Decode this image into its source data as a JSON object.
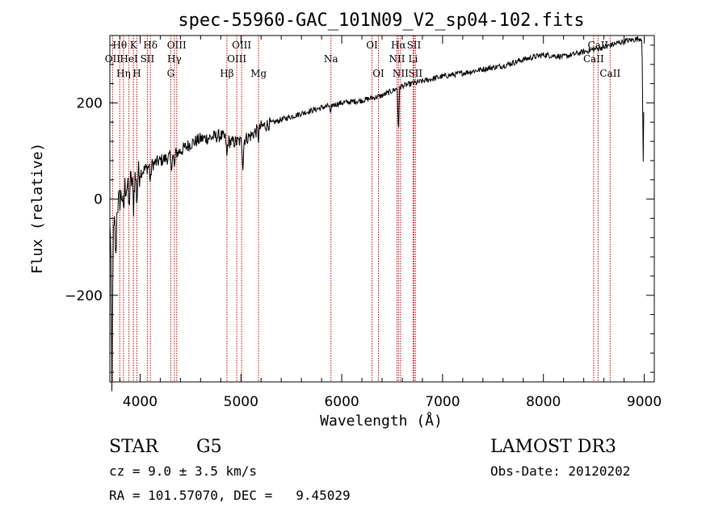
{
  "chart_data": {
    "type": "line",
    "title": "spec-55960-GAC_101N09_V2_sp04-102.fits",
    "xlabel": "Wavelength (Å)",
    "ylabel": "Flux (relative)",
    "xlim": [
      3700,
      9100
    ],
    "ylim": [
      -380,
      340
    ],
    "x_ticks": [
      4000,
      5000,
      6000,
      7000,
      8000,
      9000
    ],
    "x_tick_labels": [
      "4000",
      "5000",
      "6000",
      "7000",
      "8000",
      "9000"
    ],
    "y_ticks": [
      -200,
      0,
      200
    ],
    "y_tick_labels": [
      "−200",
      "0",
      "200"
    ],
    "continuum_points": {
      "x": [
        3700,
        3730,
        3760,
        3800,
        3850,
        3900,
        3950,
        4000,
        4100,
        4200,
        4300,
        4400,
        4500,
        4600,
        4700,
        4800,
        4900,
        5000,
        5100,
        5200,
        5400,
        5600,
        5800,
        6000,
        6200,
        6400,
        6600,
        6800,
        7000,
        7200,
        7400,
        7600,
        7800,
        8000,
        8200,
        8400,
        8600,
        8800,
        8990
      ],
      "y": [
        -60,
        -90,
        -20,
        0,
        25,
        35,
        45,
        55,
        70,
        80,
        88,
        100,
        115,
        125,
        128,
        132,
        118,
        120,
        132,
        150,
        165,
        178,
        190,
        200,
        205,
        215,
        235,
        245,
        255,
        262,
        270,
        277,
        290,
        300,
        296,
        306,
        316,
        328,
        335
      ]
    },
    "absorption_features": [
      {
        "x": 3720,
        "depth": 330
      },
      {
        "x": 3760,
        "depth": 110
      },
      {
        "x": 3835,
        "depth": 55
      },
      {
        "x": 3889,
        "depth": 60
      },
      {
        "x": 3934,
        "depth": 60
      },
      {
        "x": 3968,
        "depth": 55
      },
      {
        "x": 4102,
        "depth": 40
      },
      {
        "x": 4308,
        "depth": 30
      },
      {
        "x": 4340,
        "depth": 30
      },
      {
        "x": 4861,
        "depth": 40
      },
      {
        "x": 5020,
        "depth": 55
      },
      {
        "x": 5175,
        "depth": 20
      },
      {
        "x": 5890,
        "depth": 20
      },
      {
        "x": 6563,
        "depth": 95
      },
      {
        "x": 8990,
        "depth": 260
      }
    ],
    "spectral_lines": [
      {
        "x": 3727,
        "label": "OII",
        "row": 2
      },
      {
        "x": 3798,
        "label": "Hθ",
        "row": 1
      },
      {
        "x": 3835,
        "label": "Hη",
        "row": 3
      },
      {
        "x": 3889,
        "label": "HeI",
        "row": 2
      },
      {
        "x": 3934,
        "label": "K",
        "row": 1
      },
      {
        "x": 3968,
        "label": "H",
        "row": 3
      },
      {
        "x": 4072,
        "label": "SII",
        "row": 2
      },
      {
        "x": 4102,
        "label": "Hδ",
        "row": 1
      },
      {
        "x": 4304,
        "label": "G",
        "row": 3
      },
      {
        "x": 4340,
        "label": "Hγ",
        "row": 2
      },
      {
        "x": 4363,
        "label": "OIII",
        "row": 1
      },
      {
        "x": 4861,
        "label": "Hβ",
        "row": 3
      },
      {
        "x": 4959,
        "label": "OIII",
        "row": 2
      },
      {
        "x": 5007,
        "label": "OIII",
        "row": 1
      },
      {
        "x": 5175,
        "label": "Mg",
        "row": 3
      },
      {
        "x": 5893,
        "label": "Na",
        "row": 2
      },
      {
        "x": 6300,
        "label": "OI",
        "row": 1
      },
      {
        "x": 6364,
        "label": "OI",
        "row": 3
      },
      {
        "x": 6548,
        "label": "NII",
        "row": 2
      },
      {
        "x": 6563,
        "label": "Hα",
        "row": 1
      },
      {
        "x": 6583,
        "label": "NII",
        "row": 3
      },
      {
        "x": 6708,
        "label": "Li",
        "row": 2
      },
      {
        "x": 6716,
        "label": "SII",
        "row": 1
      },
      {
        "x": 6731,
        "label": "SII",
        "row": 3
      },
      {
        "x": 8498,
        "label": "CaII",
        "row": 2
      },
      {
        "x": 8542,
        "label": "CaII",
        "row": 1
      },
      {
        "x": 8662,
        "label": "CaII",
        "row": 3
      }
    ],
    "line_color": "#000000",
    "marker_color": "#cc0000"
  },
  "footer": {
    "object_class": "STAR",
    "subclass": "G5",
    "survey": "LAMOST DR3",
    "redshift": "cz = 9.0 ± 3.5 km/s",
    "obs_date": "Obs-Date: 20120202",
    "coords": "RA = 101.57070, DEC =   9.45029"
  }
}
